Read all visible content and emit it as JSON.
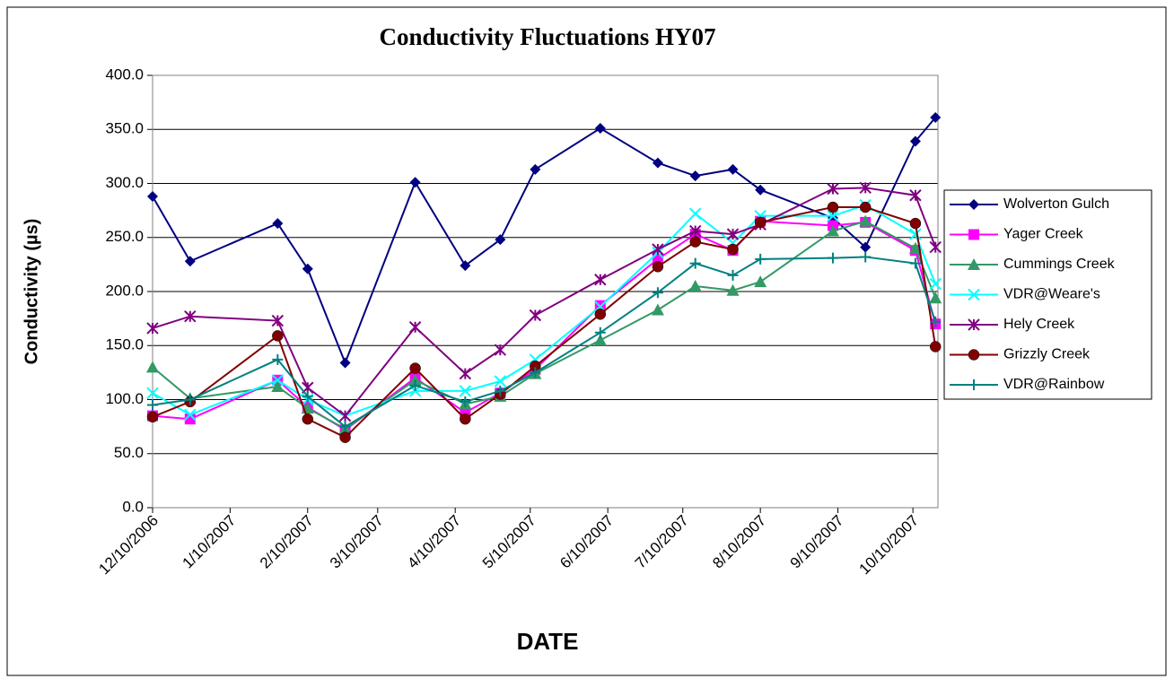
{
  "chart_data": {
    "type": "line",
    "title": "Conductivity Fluctuations HY07",
    "x_label": "DATE",
    "y_label": "Conductivity (µs)",
    "x": [
      "12/10/2006",
      "12/25/2006",
      "1/29/2007",
      "2/10/2007",
      "2/25/2007",
      "3/25/2007",
      "4/14/2007",
      "4/28/2007",
      "5/12/2007",
      "6/7/2007",
      "6/30/2007",
      "7/15/2007",
      "7/30/2007",
      "8/10/2007",
      "9/8/2007",
      "9/21/2007",
      "10/11/2007",
      "10/19/2007"
    ],
    "xlim": [
      "12/10/2006",
      "10/20/2007"
    ],
    "xticks": [
      "12/10/2006",
      "1/10/2007",
      "2/10/2007",
      "3/10/2007",
      "4/10/2007",
      "5/10/2007",
      "6/10/2007",
      "7/10/2007",
      "8/10/2007",
      "9/10/2007",
      "10/10/2007"
    ],
    "ylim": [
      0,
      400
    ],
    "yticks": [
      {
        "value": 0,
        "label": "0.0"
      },
      {
        "value": 50,
        "label": "50.0"
      },
      {
        "value": 100,
        "label": "100.0"
      },
      {
        "value": 150,
        "label": "150.0"
      },
      {
        "value": 200,
        "label": "200.0"
      },
      {
        "value": 250,
        "label": "250.0"
      },
      {
        "value": 300,
        "label": "300.0"
      },
      {
        "value": 350,
        "label": "350.0"
      },
      {
        "value": 400,
        "label": "400.0"
      }
    ],
    "grid": true,
    "legend": "right",
    "series": [
      {
        "name": "Wolverton Gulch",
        "color": "#000080",
        "marker": "diamond",
        "values": [
          288,
          228,
          263,
          221,
          134,
          301,
          224,
          248,
          313,
          351,
          319,
          307,
          313,
          294,
          268,
          241,
          339,
          361
        ]
      },
      {
        "name": "Yager Creek",
        "color": "#ff00ff",
        "marker": "square",
        "values": [
          85,
          82,
          118,
          93,
          72,
          120,
          88,
          106,
          128,
          187,
          230,
          253,
          238,
          265,
          261,
          264,
          238,
          170
        ]
      },
      {
        "name": "Cummings Creek",
        "color": "#339966",
        "marker": "triangle",
        "values": [
          130,
          101,
          112,
          92,
          73,
          118,
          96,
          103,
          124,
          155,
          183,
          205,
          201,
          209,
          256,
          265,
          240,
          194
        ]
      },
      {
        "name": "VDR@Weare's",
        "color": "#00ffff",
        "marker": "x",
        "values": [
          106,
          86,
          118,
          100,
          85,
          108,
          108,
          117,
          137,
          186,
          236,
          272,
          245,
          270,
          270,
          280,
          253,
          207
        ]
      },
      {
        "name": "Hely Creek",
        "color": "#800080",
        "marker": "star",
        "values": [
          166,
          177,
          173,
          111,
          85,
          167,
          124,
          146,
          178,
          211,
          239,
          256,
          253,
          262,
          295,
          296,
          289,
          241
        ]
      },
      {
        "name": "Grizzly Creek",
        "color": "#800000",
        "marker": "circle",
        "values": [
          84,
          98,
          159,
          82,
          65,
          129,
          82,
          105,
          131,
          179,
          223,
          246,
          239,
          264,
          278,
          278,
          263,
          149
        ]
      },
      {
        "name": "VDR@Rainbow",
        "color": "#008080",
        "marker": "plus",
        "values": [
          95,
          100,
          137,
          103,
          75,
          113,
          98,
          108,
          125,
          162,
          199,
          226,
          215,
          230,
          231,
          232,
          226,
          172
        ]
      }
    ]
  }
}
